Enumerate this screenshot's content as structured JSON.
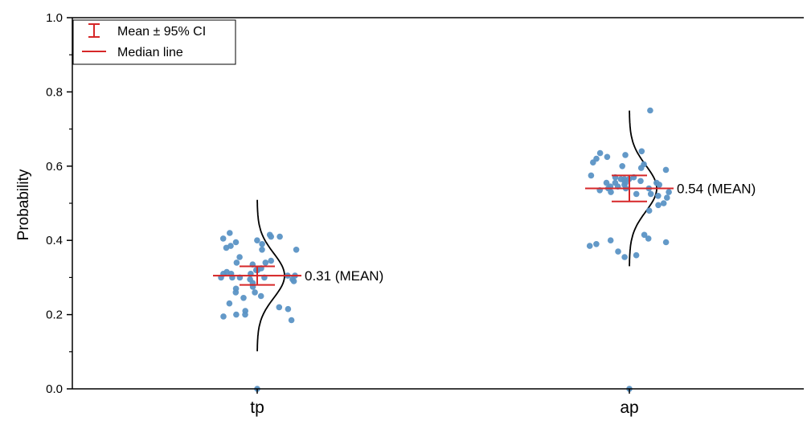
{
  "chart_data": {
    "type": "scatter",
    "subtype": "half-violin scatter with mean, 95% CI and median",
    "title": "",
    "xlabel": "",
    "ylabel": "Probability",
    "ylim": [
      0.0,
      1.0
    ],
    "yticks": [
      "0.0",
      "0.2",
      "0.4",
      "0.6",
      "0.8",
      "1.0"
    ],
    "categories": [
      "tp",
      "ap"
    ],
    "grid": false,
    "legend_position": "top-left",
    "legend": [
      {
        "symbol": "errorbar",
        "label": "Mean ± 95% CI"
      },
      {
        "symbol": "line",
        "label": "Median line"
      }
    ],
    "colors": {
      "points": "#5b93c5",
      "stats": "#d62728",
      "curve": "#000000"
    },
    "groups": [
      {
        "category": "tp",
        "mean": 0.305,
        "ci": [
          0.28,
          0.33
        ],
        "median": 0.305,
        "mean_label": "0.31 (MEAN)",
        "points": [
          0.0,
          0.39,
          0.38,
          0.34,
          0.335,
          0.32,
          0.31,
          0.305,
          0.3,
          0.295,
          0.3,
          0.41,
          0.415,
          0.405,
          0.4,
          0.395,
          0.41,
          0.42,
          0.375,
          0.32,
          0.31,
          0.3,
          0.295,
          0.305,
          0.315,
          0.285,
          0.29,
          0.3,
          0.31,
          0.325,
          0.345,
          0.355,
          0.385,
          0.375,
          0.275,
          0.26,
          0.25,
          0.245,
          0.23,
          0.22,
          0.21,
          0.2,
          0.195,
          0.185,
          0.2,
          0.215,
          0.26,
          0.27,
          0.34
        ]
      },
      {
        "category": "ap",
        "mean": 0.54,
        "ci": [
          0.505,
          0.575
        ],
        "median": 0.54,
        "mean_label": "0.54 (MEAN)",
        "points": [
          0.0,
          0.75,
          0.64,
          0.635,
          0.625,
          0.63,
          0.62,
          0.61,
          0.6,
          0.605,
          0.595,
          0.59,
          0.57,
          0.565,
          0.565,
          0.56,
          0.555,
          0.555,
          0.55,
          0.545,
          0.54,
          0.54,
          0.535,
          0.53,
          0.525,
          0.52,
          0.515,
          0.5,
          0.495,
          0.48,
          0.56,
          0.57,
          0.575,
          0.555,
          0.545,
          0.555,
          0.565,
          0.415,
          0.405,
          0.4,
          0.395,
          0.385,
          0.37,
          0.36,
          0.355,
          0.39,
          0.53,
          0.54,
          0.55,
          0.525
        ]
      }
    ]
  }
}
